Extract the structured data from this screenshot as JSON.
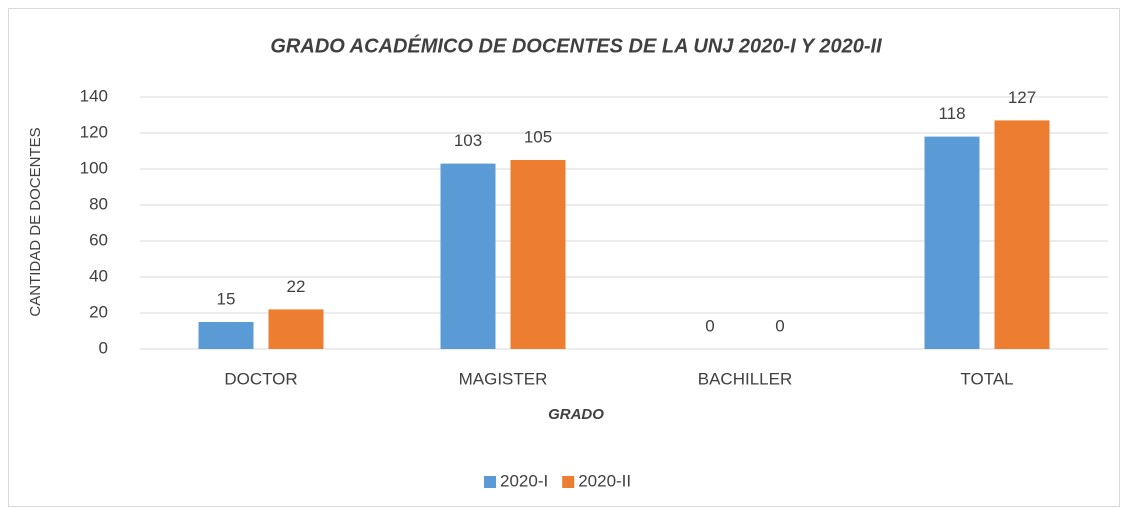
{
  "chart_data": {
    "type": "bar",
    "title": "GRADO ACADÉMICO DE DOCENTES DE LA UNJ 2020-I Y 2020-II",
    "x_label": "GRADO",
    "y_label": "CANTIDAD DE DOCENTES",
    "categories": [
      "DOCTOR",
      "MAGISTER",
      "BACHILLER",
      "TOTAL"
    ],
    "series": [
      {
        "name": "2020-I",
        "color": "#5b9bd5",
        "values": [
          15,
          103,
          0,
          118
        ]
      },
      {
        "name": "2020-II",
        "color": "#ed7d31",
        "values": [
          22,
          105,
          0,
          127
        ]
      }
    ],
    "ylim": [
      0,
      140
    ],
    "yticks": [
      0,
      20,
      40,
      60,
      80,
      100,
      120,
      140
    ],
    "grid": true,
    "legend": "bottom"
  }
}
